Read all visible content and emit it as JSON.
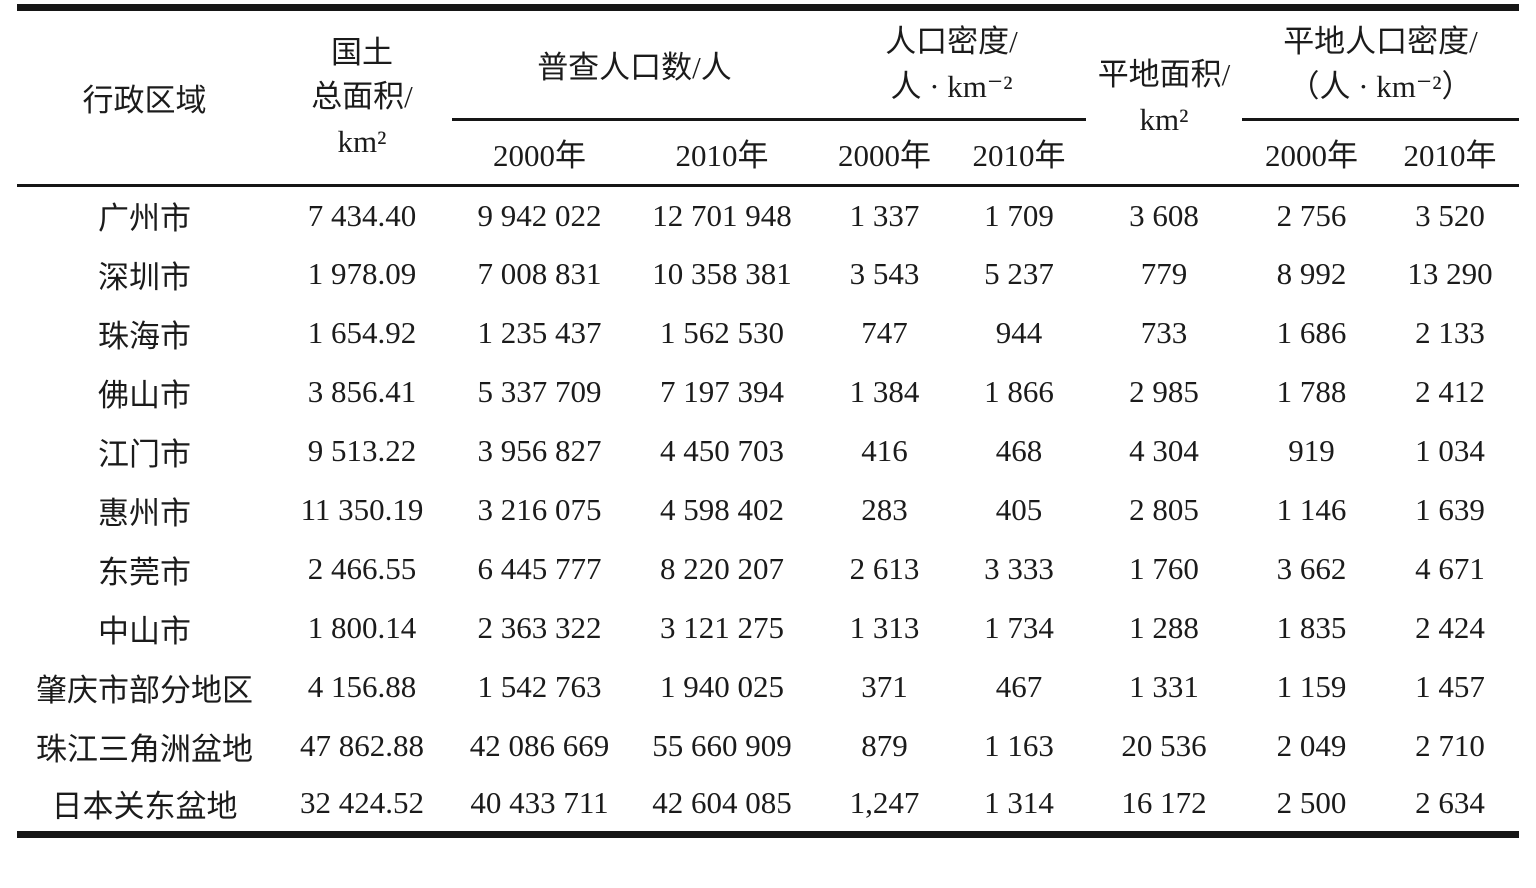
{
  "table": {
    "header": {
      "region": "行政区域",
      "land_area": "国土\n总面积/\nkm²",
      "census_population": "普查人口数/人",
      "population_density": "人口密度/\n人 · km⁻²",
      "flat_area": "平地面积/\nkm²",
      "flat_population_density": "平地人口密度/\n（人 · km⁻²）",
      "year_2000": "2000年",
      "year_2010": "2010年"
    },
    "rows": [
      {
        "region": "广州市",
        "land_area": "7 434.40",
        "pop_2000": "9 942 022",
        "pop_2010": "12 701 948",
        "density_2000": "1 337",
        "density_2010": "1 709",
        "flat_area": "3 608",
        "flat_density_2000": "2 756",
        "flat_density_2010": "3 520"
      },
      {
        "region": "深圳市",
        "land_area": "1 978.09",
        "pop_2000": "7 008 831",
        "pop_2010": "10 358 381",
        "density_2000": "3 543",
        "density_2010": "5 237",
        "flat_area": "779",
        "flat_density_2000": "8 992",
        "flat_density_2010": "13 290"
      },
      {
        "region": "珠海市",
        "land_area": "1 654.92",
        "pop_2000": "1 235 437",
        "pop_2010": "1 562 530",
        "density_2000": "747",
        "density_2010": "944",
        "flat_area": "733",
        "flat_density_2000": "1 686",
        "flat_density_2010": "2 133"
      },
      {
        "region": "佛山市",
        "land_area": "3 856.41",
        "pop_2000": "5 337 709",
        "pop_2010": "7 197 394",
        "density_2000": "1 384",
        "density_2010": "1 866",
        "flat_area": "2 985",
        "flat_density_2000": "1 788",
        "flat_density_2010": "2 412"
      },
      {
        "region": "江门市",
        "land_area": "9 513.22",
        "pop_2000": "3 956 827",
        "pop_2010": "4 450 703",
        "density_2000": "416",
        "density_2010": "468",
        "flat_area": "4 304",
        "flat_density_2000": "919",
        "flat_density_2010": "1 034"
      },
      {
        "region": "惠州市",
        "land_area": "11 350.19",
        "pop_2000": "3 216 075",
        "pop_2010": "4 598 402",
        "density_2000": "283",
        "density_2010": "405",
        "flat_area": "2 805",
        "flat_density_2000": "1 146",
        "flat_density_2010": "1 639"
      },
      {
        "region": "东莞市",
        "land_area": "2 466.55",
        "pop_2000": "6 445 777",
        "pop_2010": "8 220 207",
        "density_2000": "2 613",
        "density_2010": "3 333",
        "flat_area": "1 760",
        "flat_density_2000": "3 662",
        "flat_density_2010": "4 671"
      },
      {
        "region": "中山市",
        "land_area": "1 800.14",
        "pop_2000": "2 363 322",
        "pop_2010": "3 121 275",
        "density_2000": "1 313",
        "density_2010": "1 734",
        "flat_area": "1 288",
        "flat_density_2000": "1 835",
        "flat_density_2010": "2 424"
      },
      {
        "region": "肇庆市部分地区",
        "land_area": "4 156.88",
        "pop_2000": "1 542 763",
        "pop_2010": "1 940 025",
        "density_2000": "371",
        "density_2010": "467",
        "flat_area": "1 331",
        "flat_density_2000": "1 159",
        "flat_density_2010": "1 457"
      },
      {
        "region": "珠江三角洲盆地",
        "land_area": "47 862.88",
        "pop_2000": "42 086 669",
        "pop_2010": "55 660 909",
        "density_2000": "879",
        "density_2010": "1 163",
        "flat_area": "20 536",
        "flat_density_2000": "2 049",
        "flat_density_2010": "2 710"
      },
      {
        "region": "日本关东盆地",
        "land_area": "32 424.52",
        "pop_2000": "40 433 711",
        "pop_2010": "42 604 085",
        "density_2000": "1,247",
        "density_2010": "1 314",
        "flat_area": "16 172",
        "flat_density_2000": "2 500",
        "flat_density_2010": "2 634"
      }
    ]
  }
}
